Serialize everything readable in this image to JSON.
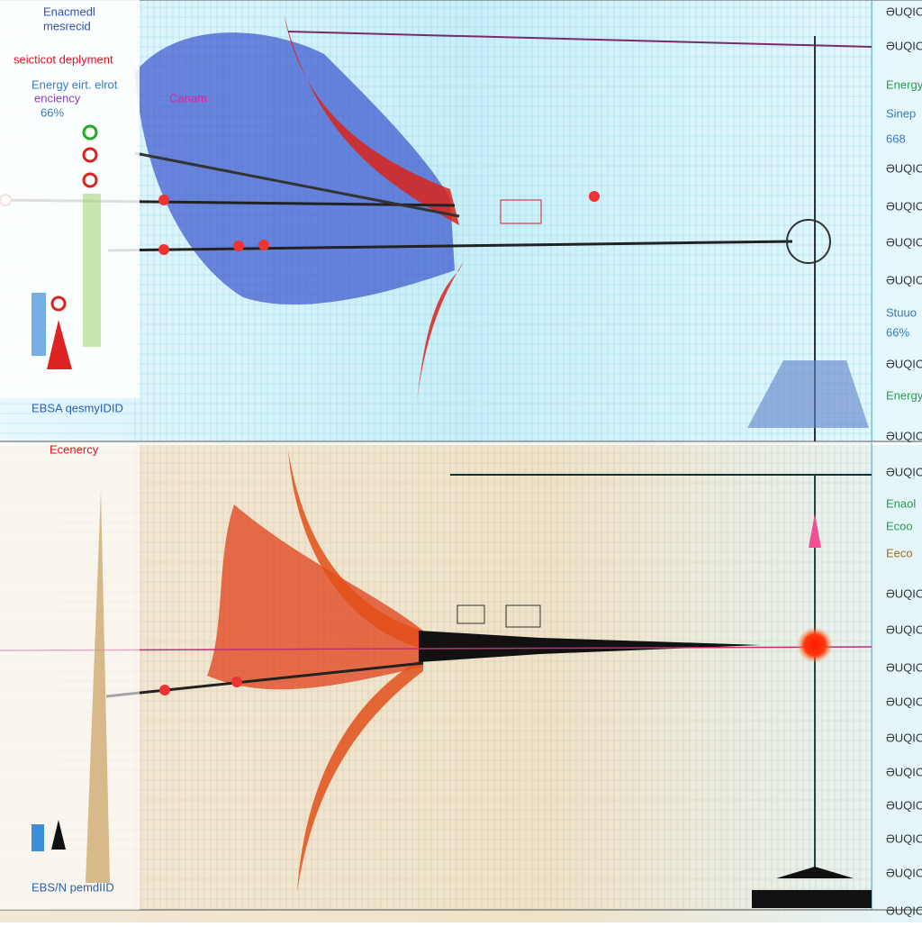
{
  "top_panel": {
    "title_lines": [
      "Enacmedl",
      "mesrecid"
    ],
    "subtitle": "seicticot deplyment",
    "legend_lines": [
      "Energy eirt. elrot",
      "enciency",
      "66%"
    ],
    "annotation": "Canam",
    "footer": "EBSA qesmyIDID",
    "right_labels": [
      "ƏUQIO",
      "ƏUQIO",
      "ƏUQIO",
      "ƏUQIO",
      "ƏUQIO",
      "ƏUQIO",
      "ƏUQIO",
      "ƏUQIO"
    ],
    "side_labels": [
      "Energy",
      "Sinep",
      "668",
      "Stuuo",
      "66%",
      "Energy"
    ]
  },
  "bottom_panel": {
    "title_lines": [
      "Ecenercy"
    ],
    "footer": "EBS/N pemdIID",
    "right_labels": [
      "ƏUQIO",
      "ƏUQIO",
      "ƏUQIO",
      "ƏUQIO",
      "ƏUQIO",
      "ƏUQIO",
      "ƏUQIO",
      "ƏUQIO",
      "ƏUQIO",
      "ƏUQIO",
      "ƏUQIO"
    ],
    "side_labels": [
      "Enaol",
      "Ecoo",
      "Eeco"
    ]
  }
}
